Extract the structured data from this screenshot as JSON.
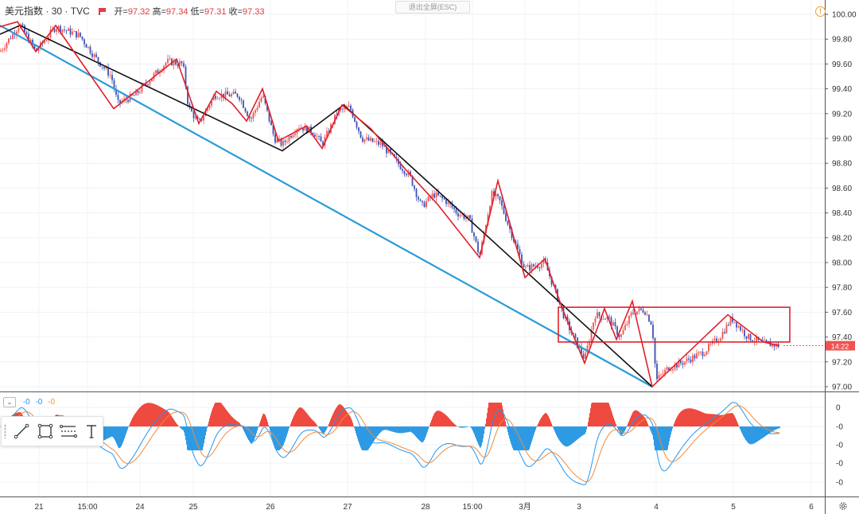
{
  "header": {
    "symbol": "美元指数",
    "interval": "30",
    "source": "TVC",
    "sep": "·",
    "open_label": "开=",
    "open": "97.32",
    "high_label": "高=",
    "high": "97.34",
    "low_label": "低=",
    "low": "97.31",
    "close_label": "收=",
    "close": "97.33"
  },
  "fullscreen_button": "退出全屏(ESC)",
  "warning_icon": "!",
  "price_tag": "14:22",
  "indicator": {
    "v1": "-0",
    "v2": "-0",
    "v3": "-0",
    "c1": "#2196f3",
    "c2": "#2196f3",
    "c3": "#ff9800"
  },
  "colors": {
    "up": "#ef5350",
    "down": "#3f51b5",
    "zigzag": "#e01f2a",
    "trend": "#111111",
    "channel": "#2a9bd8",
    "hist_pos": "#ef4a3f",
    "hist_neg": "#2f9ae4",
    "macd": "#2196f3",
    "signal": "#f08a3c"
  },
  "chart_data": {
    "type": "candlestick",
    "title": "美元指数 · 30 · TVC",
    "y_ticks": [
      "100.00",
      "99.80",
      "99.60",
      "99.40",
      "99.20",
      "99.00",
      "98.80",
      "98.60",
      "98.40",
      "98.20",
      "98.00",
      "97.80",
      "97.60",
      "97.40",
      "97.20",
      "97.00"
    ],
    "ylim": [
      97.0,
      100.0
    ],
    "x_ticks": [
      "21",
      "15:00",
      "24",
      "25",
      "26",
      "27",
      "28",
      "15:00",
      "3月",
      "3",
      "4",
      "5",
      "6"
    ],
    "last_price": 97.33,
    "price_path": [
      [
        0,
        99.7
      ],
      [
        25,
        99.92
      ],
      [
        45,
        99.7
      ],
      [
        70,
        99.9
      ],
      [
        100,
        99.83
      ],
      [
        120,
        99.65
      ],
      [
        140,
        99.5
      ],
      [
        148,
        99.28
      ],
      [
        170,
        99.35
      ],
      [
        210,
        99.62
      ],
      [
        230,
        99.6
      ],
      [
        237,
        99.25
      ],
      [
        250,
        99.12
      ],
      [
        270,
        99.35
      ],
      [
        300,
        99.35
      ],
      [
        315,
        99.15
      ],
      [
        330,
        99.35
      ],
      [
        345,
        99.0
      ],
      [
        355,
        98.95
      ],
      [
        375,
        99.1
      ],
      [
        395,
        99.05
      ],
      [
        405,
        98.95
      ],
      [
        425,
        99.22
      ],
      [
        440,
        99.25
      ],
      [
        455,
        99.0
      ],
      [
        480,
        98.95
      ],
      [
        500,
        98.8
      ],
      [
        515,
        98.7
      ],
      [
        530,
        98.45
      ],
      [
        545,
        98.55
      ],
      [
        560,
        98.5
      ],
      [
        575,
        98.4
      ],
      [
        590,
        98.35
      ],
      [
        603,
        98.05
      ],
      [
        618,
        98.55
      ],
      [
        628,
        98.5
      ],
      [
        645,
        98.2
      ],
      [
        660,
        97.95
      ],
      [
        685,
        98.0
      ],
      [
        710,
        97.55
      ],
      [
        725,
        97.35
      ],
      [
        735,
        97.22
      ],
      [
        748,
        97.58
      ],
      [
        765,
        97.55
      ],
      [
        780,
        97.4
      ],
      [
        795,
        97.6
      ],
      [
        810,
        97.62
      ],
      [
        820,
        97.5
      ],
      [
        825,
        97.05
      ],
      [
        840,
        97.15
      ],
      [
        860,
        97.2
      ],
      [
        885,
        97.28
      ],
      [
        905,
        97.4
      ],
      [
        920,
        97.55
      ],
      [
        940,
        97.4
      ],
      [
        960,
        97.35
      ],
      [
        980,
        97.33
      ]
    ],
    "zigzag_red": [
      [
        0,
        99.9
      ],
      [
        22,
        99.94
      ],
      [
        45,
        99.7
      ],
      [
        70,
        99.91
      ],
      [
        143,
        99.24
      ],
      [
        222,
        99.64
      ],
      [
        250,
        99.12
      ],
      [
        272,
        99.38
      ],
      [
        292,
        99.28
      ],
      [
        310,
        99.14
      ],
      [
        330,
        99.4
      ],
      [
        350,
        98.98
      ],
      [
        385,
        99.1
      ],
      [
        405,
        98.92
      ],
      [
        430,
        99.27
      ],
      [
        466,
        99.08
      ],
      [
        510,
        98.75
      ],
      [
        550,
        98.47
      ],
      [
        603,
        98.04
      ],
      [
        626,
        98.66
      ],
      [
        660,
        97.88
      ],
      [
        685,
        98.03
      ],
      [
        707,
        97.63
      ],
      [
        735,
        97.19
      ],
      [
        760,
        97.63
      ],
      [
        775,
        97.38
      ],
      [
        795,
        97.69
      ],
      [
        820,
        97.0
      ],
      [
        915,
        97.58
      ],
      [
        960,
        97.36
      ],
      [
        980,
        97.33
      ]
    ],
    "trend_black": [
      [
        0,
        99.84
      ],
      [
        25,
        99.91
      ],
      [
        355,
        98.9
      ],
      [
        432,
        99.27
      ],
      [
        820,
        97.0
      ]
    ],
    "channel_line": [
      [
        0,
        99.91
      ],
      [
        820,
        97.0
      ]
    ],
    "range_box": {
      "top": 97.64,
      "bottom": 97.36
    },
    "subpanel": {
      "type": "macd",
      "y_ticks": [
        "0",
        "-0",
        "-0",
        "-0",
        "-0"
      ],
      "histogram_pos_regions": [
        [
          170,
          205
        ],
        [
          205,
          230
        ],
        [
          370,
          400
        ],
        [
          420,
          440
        ],
        [
          500,
          515
        ],
        [
          560,
          600
        ],
        [
          610,
          640
        ],
        [
          690,
          700
        ],
        [
          745,
          775
        ],
        [
          850,
          930
        ]
      ],
      "histogram_neg_regions": [
        [
          140,
          165
        ],
        [
          230,
          260
        ],
        [
          335,
          365
        ],
        [
          470,
          545
        ],
        [
          590,
          610
        ],
        [
          645,
          680
        ],
        [
          700,
          745
        ],
        [
          815,
          850
        ],
        [
          930,
          980
        ]
      ]
    }
  }
}
